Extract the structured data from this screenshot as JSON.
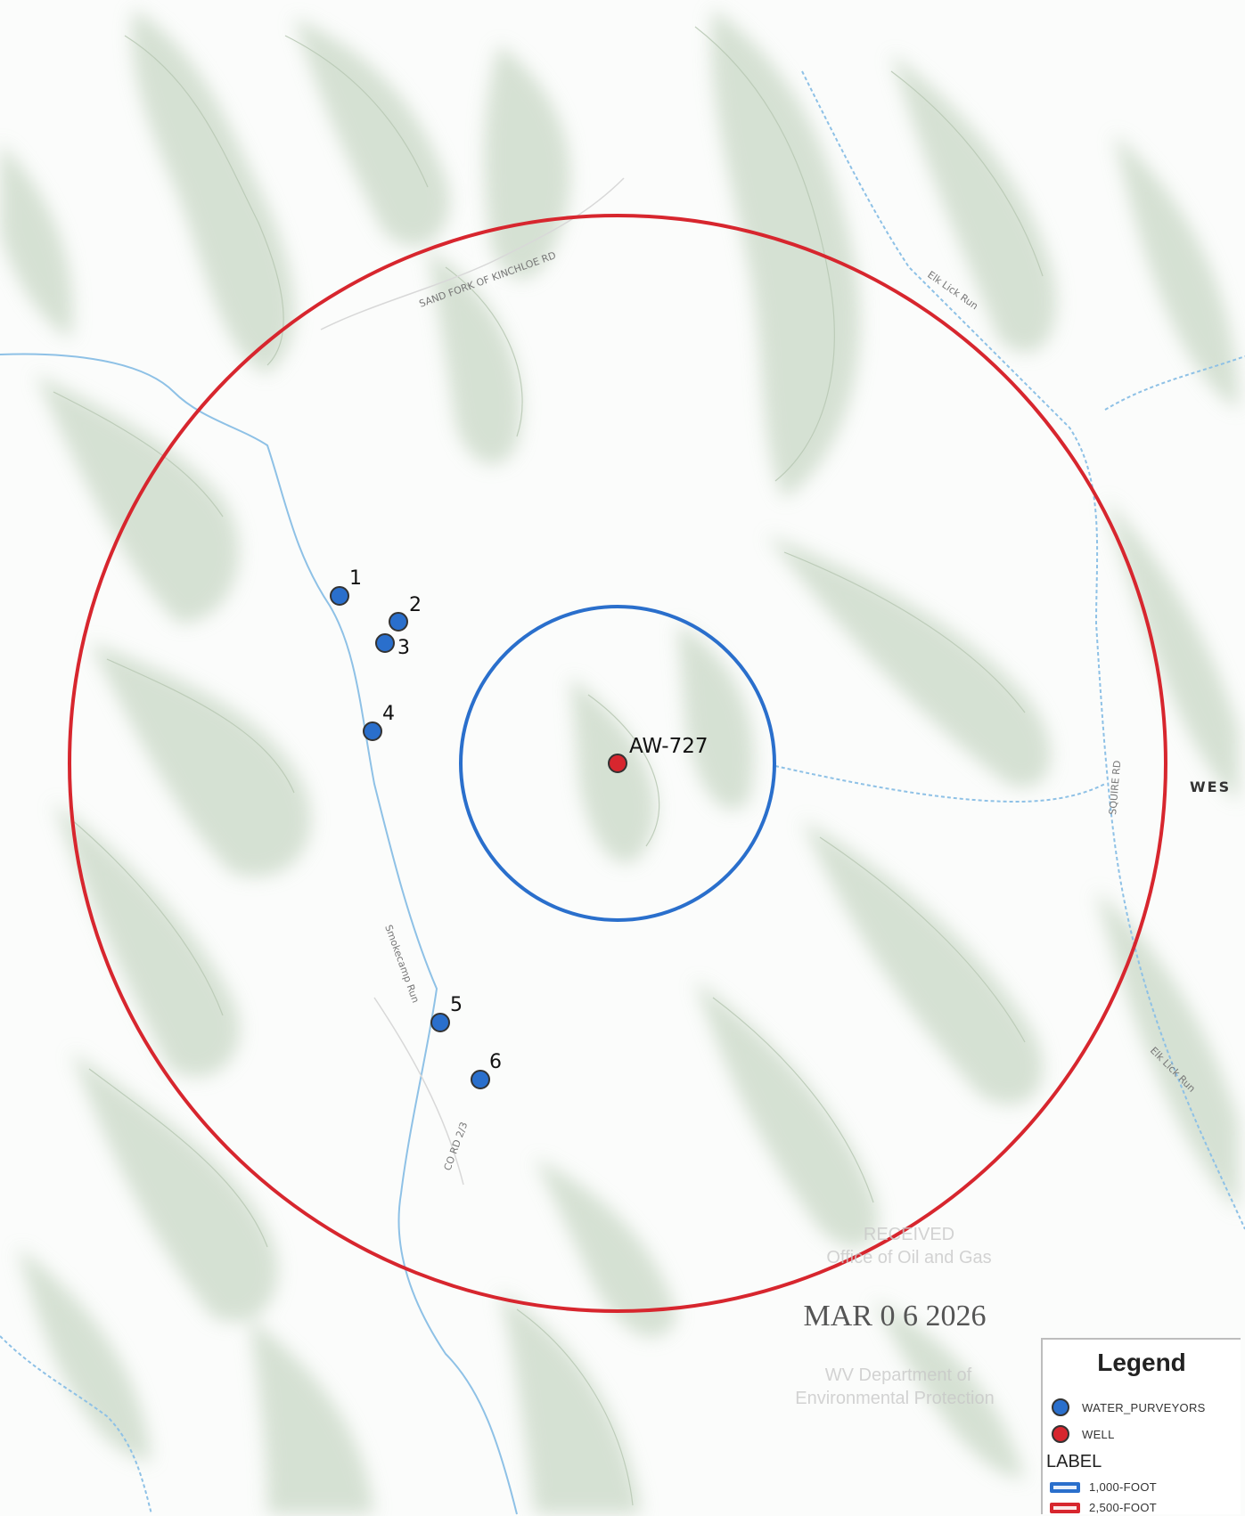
{
  "map": {
    "well_label": "AW-727",
    "purveyor_labels": [
      "1",
      "2",
      "3",
      "4",
      "5",
      "6"
    ],
    "side_label": "WES",
    "features": {
      "road_sand_fork": "SAND FORK OF KINCHLOE RD",
      "road_co_rd": "CO RD 2/3",
      "stream_smokecamp": "Smokecamp Run",
      "stream_elk_lick_top": "Elk Lick Run",
      "stream_elk_lick_bottom": "Elk Lick Run",
      "road_squire": "SQUIRE RD"
    }
  },
  "stamp": {
    "line1": "RECEIVED",
    "line2": "Office of Oil and Gas",
    "date": "MAR 0 6 2026",
    "line3": "WV Department of",
    "line4": "Environmental Protection"
  },
  "legend": {
    "title": "Legend",
    "items": [
      {
        "label": "WATER_PURVEYORS",
        "color": "#2a6fcc"
      },
      {
        "label": "WELL",
        "color": "#d7262e"
      }
    ],
    "label_heading": "LABEL",
    "buffers": [
      {
        "label": "1,000-FOOT",
        "color": "#2a6fcc"
      },
      {
        "label": "2,500-FOOT",
        "color": "#d7262e"
      }
    ]
  },
  "colors": {
    "buffer_1000": "#2a6fcc",
    "buffer_2500": "#d7262e",
    "purveyor": "#2a6fcc",
    "well": "#d7262e",
    "terrain": "#c5d4c2",
    "stream": "#8ec1e6"
  }
}
